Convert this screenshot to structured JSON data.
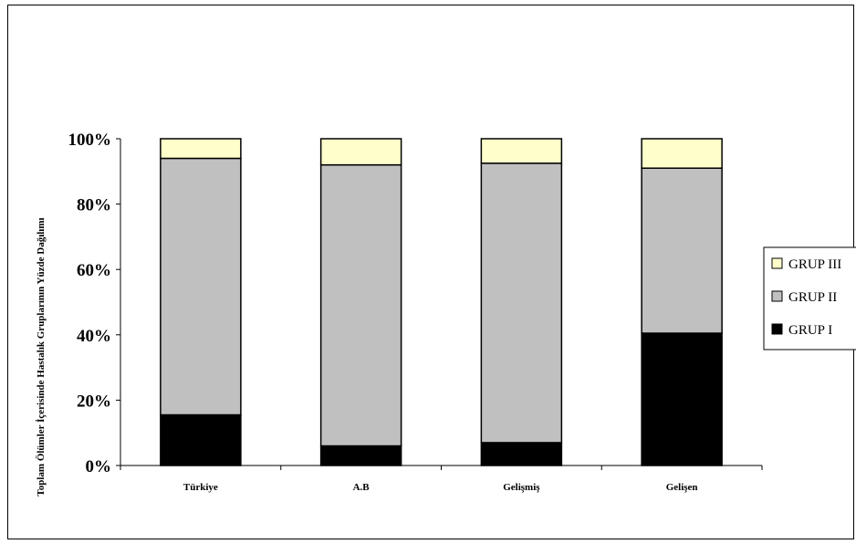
{
  "chart_data": {
    "type": "bar",
    "stacked": true,
    "percent": true,
    "categories": [
      "Türkiye",
      "A.B",
      "Gelişmiş",
      "Gelişen"
    ],
    "series": [
      {
        "name": "GRUP I",
        "color": "#000000",
        "values": [
          15.5,
          6.0,
          7.0,
          40.5
        ]
      },
      {
        "name": "GRUP II",
        "color": "#c0c0c0",
        "values": [
          78.5,
          86.0,
          85.5,
          50.5
        ]
      },
      {
        "name": "GRUP III",
        "color": "#ffffcc",
        "values": [
          6.0,
          8.0,
          7.5,
          9.0
        ]
      }
    ],
    "ylim": [
      0,
      100
    ],
    "yticks": [
      "0%",
      "20%",
      "40%",
      "60%",
      "80%",
      "100%"
    ],
    "ylabel": "Toplam Ölümler İçerisinde Hastalık Gruplarının Yüzde Dağılımı",
    "xlabel": "",
    "legend_position": "right",
    "grid": false
  }
}
